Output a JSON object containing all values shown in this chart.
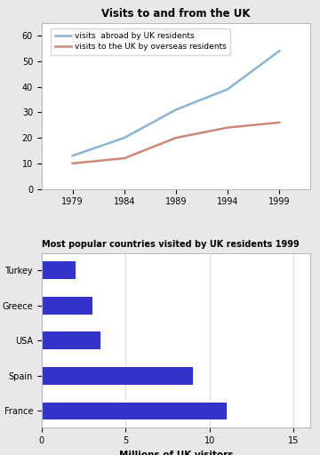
{
  "line_chart": {
    "title": "Visits to and from the UK",
    "years": [
      1979,
      1984,
      1989,
      1994,
      1999
    ],
    "abroad": [
      13,
      20,
      31,
      39,
      54
    ],
    "overseas": [
      10,
      12,
      20,
      24,
      26
    ],
    "line1_label": "visits  abroad by UK residents",
    "line2_label": "visits to the UK by overseas residents",
    "line1_color": "#8ab4d4",
    "line2_color": "#cc8877",
    "ylim": [
      0,
      65
    ],
    "yticks": [
      0,
      10,
      20,
      30,
      40,
      50,
      60
    ],
    "xlim": [
      1976,
      2002
    ],
    "bg_color": "#ffffff"
  },
  "bar_chart": {
    "title": "Most popular countries visited by UK residents 1999",
    "countries": [
      "France",
      "Spain",
      "USA",
      "Greece",
      "Turkey"
    ],
    "values": [
      11,
      9,
      3.5,
      3,
      2
    ],
    "bar_color": "#3333cc",
    "xlabel": "Millions of UK visitors",
    "xlim": [
      0,
      16
    ],
    "xticks": [
      0,
      5,
      10,
      15
    ],
    "bg_color": "#ffffff"
  },
  "fig_bg": "#e8e8e8"
}
